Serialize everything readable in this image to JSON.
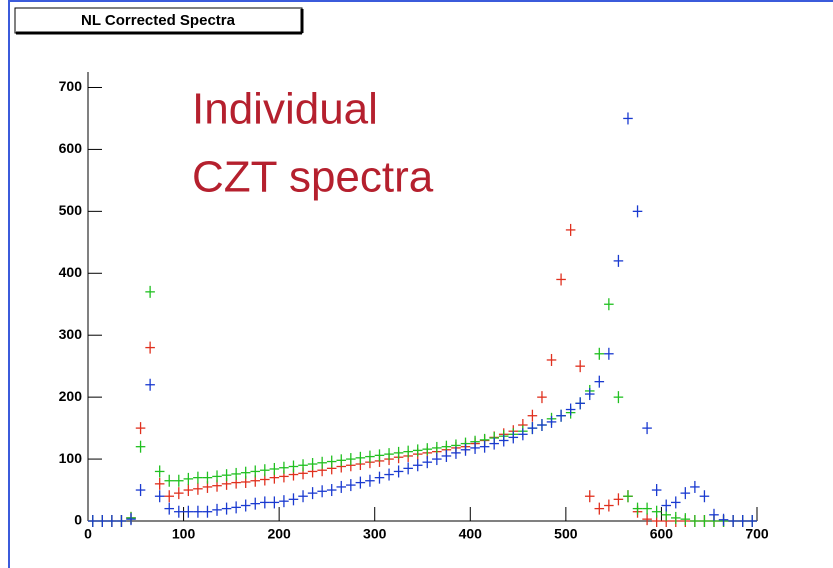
{
  "chart_data": {
    "type": "histogram",
    "title": "NL Corrected Spectra",
    "annotation": [
      "Individual",
      "CZT spectra"
    ],
    "annotation_color": "#b5202e",
    "bins": [
      0,
      10,
      20,
      30,
      40,
      50,
      60,
      70,
      80,
      90,
      100,
      110,
      120,
      130,
      140,
      150,
      160,
      170,
      180,
      190,
      200,
      210,
      220,
      230,
      240,
      250,
      260,
      270,
      280,
      290,
      300,
      310,
      320,
      330,
      340,
      350,
      360,
      370,
      380,
      390,
      400,
      410,
      420,
      430,
      440,
      450,
      460,
      470,
      480,
      490,
      500,
      510,
      520,
      530,
      540,
      550,
      560,
      570,
      580,
      590,
      600,
      610,
      620,
      630,
      640,
      650,
      660,
      670,
      680,
      690,
      700
    ],
    "series": [
      {
        "color": "#e0301e",
        "values": [
          0,
          0,
          0,
          0,
          5,
          150,
          280,
          60,
          40,
          45,
          50,
          52,
          55,
          57,
          60,
          62,
          63,
          65,
          67,
          70,
          72,
          75,
          77,
          80,
          82,
          85,
          88,
          90,
          92,
          95,
          97,
          100,
          103,
          105,
          108,
          110,
          112,
          115,
          118,
          120,
          125,
          130,
          135,
          140,
          145,
          155,
          170,
          200,
          260,
          390,
          470,
          250,
          40,
          20,
          25,
          35,
          40,
          15,
          3,
          0,
          0,
          0,
          0,
          0,
          0,
          0,
          0,
          0,
          0,
          0
        ]
      },
      {
        "color": "#20c020",
        "values": [
          0,
          0,
          0,
          0,
          5,
          120,
          370,
          80,
          65,
          65,
          68,
          70,
          70,
          72,
          74,
          76,
          78,
          80,
          82,
          84,
          86,
          88,
          90,
          92,
          94,
          96,
          98,
          100,
          102,
          104,
          106,
          108,
          110,
          112,
          114,
          116,
          118,
          120,
          122,
          125,
          128,
          131,
          134,
          137,
          140,
          145,
          150,
          155,
          165,
          170,
          175,
          190,
          210,
          270,
          350,
          200,
          40,
          20,
          20,
          15,
          10,
          5,
          3,
          0,
          0,
          0,
          0,
          0,
          0,
          0
        ]
      },
      {
        "color": "#1a3ad0",
        "values": [
          0,
          0,
          0,
          0,
          3,
          50,
          220,
          40,
          20,
          15,
          15,
          15,
          15,
          18,
          20,
          22,
          25,
          28,
          30,
          30,
          32,
          35,
          40,
          45,
          48,
          50,
          55,
          58,
          62,
          65,
          70,
          75,
          80,
          85,
          90,
          95,
          100,
          105,
          110,
          115,
          118,
          120,
          125,
          130,
          135,
          140,
          150,
          155,
          160,
          170,
          180,
          190,
          205,
          225,
          270,
          420,
          650,
          500,
          150,
          50,
          25,
          30,
          45,
          55,
          40,
          10,
          2,
          0,
          0,
          0
        ]
      }
    ],
    "xlim": [
      0,
      700
    ],
    "ylim": [
      0,
      725
    ],
    "xticks": [
      0,
      100,
      200,
      300,
      400,
      500,
      600,
      700
    ],
    "yticks": [
      0,
      100,
      200,
      300,
      400,
      500,
      600,
      700
    ]
  }
}
